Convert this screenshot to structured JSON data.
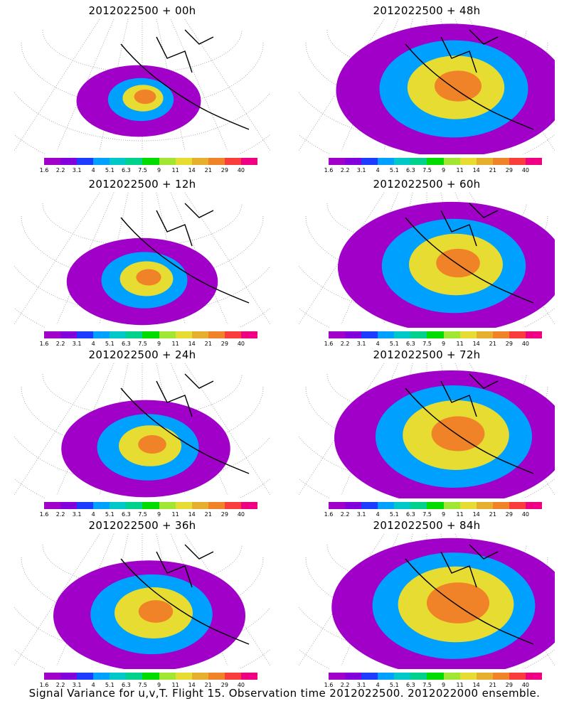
{
  "panels": [
    {
      "title": "2012022500 + 00h"
    },
    {
      "title": "2012022500 + 48h"
    },
    {
      "title": "2012022500 + 12h"
    },
    {
      "title": "2012022500 + 60h"
    },
    {
      "title": "2012022500 + 24h"
    },
    {
      "title": "2012022500 + 72h"
    },
    {
      "title": "2012022500 + 36h"
    },
    {
      "title": "2012022500 + 84h"
    }
  ],
  "colorbar": {
    "labels": [
      "1.6",
      "2.2",
      "3.1",
      "4",
      "5.1",
      "6.3",
      "7.5",
      "9",
      "11",
      "14",
      "21",
      "29",
      "40"
    ],
    "colors": [
      "#a000c8",
      "#8200dc",
      "#1e3cff",
      "#00a0ff",
      "#00c8c8",
      "#00d28c",
      "#00dc00",
      "#a0e632",
      "#e6dc32",
      "#e6af2d",
      "#f08228",
      "#fa3c3c",
      "#f00082"
    ]
  },
  "footer": "Signal Variance for u,v,T. Flight 15. Observation time 2012022500. 2012022000 ensemble."
}
